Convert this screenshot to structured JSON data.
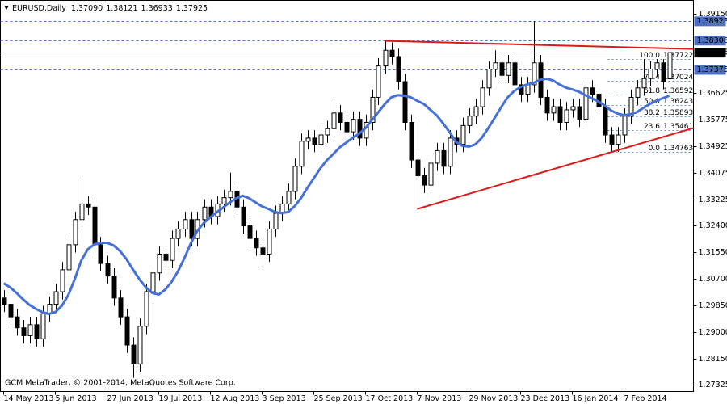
{
  "chart_data": {
    "type": "candlestick",
    "symbol": "EURUSD,Daily",
    "quote": [
      "1.37090",
      "1.38121",
      "1.36933",
      "1.37925"
    ],
    "footer": "GCM MetaTrader, © 2001-2014, MetaQuotes Software Corp.",
    "grid": false,
    "colors": {
      "up": "#ffffff",
      "down": "#000000",
      "wick": "#000000",
      "ma": "#4470d8",
      "trend": "#e01818",
      "level": "#4a6fc4",
      "last": "#a0a0a0",
      "fib": "#3a66c8"
    },
    "xlim": [
      -0.5,
      106.75
    ],
    "xticks": [
      {
        "value": 0,
        "label": "14 May 2013"
      },
      {
        "value": 8,
        "label": "5 Jun 2013"
      },
      {
        "value": 16,
        "label": "27 Jun 2013"
      },
      {
        "value": 24,
        "label": "19 Jul 2013"
      },
      {
        "value": 32,
        "label": "12 Aug 2013"
      },
      {
        "value": 40,
        "label": "3 Sep 2013"
      },
      {
        "value": 48,
        "label": "25 Sep 2013"
      },
      {
        "value": 56,
        "label": "17 Oct 2013"
      },
      {
        "value": 64,
        "label": "7 Nov 2013"
      },
      {
        "value": 72,
        "label": "29 Nov 2013"
      },
      {
        "value": 80,
        "label": "23 Dec 2013"
      },
      {
        "value": 88,
        "label": "16 Jan 2014"
      },
      {
        "value": 96,
        "label": "7 Feb 2014"
      }
    ],
    "ylim": [
      1.2712,
      1.3959
    ],
    "yticks": [
      {
        "value": 1.3915,
        "label": "1.39150"
      },
      1.36625,
      1.35775,
      1.34925,
      1.34075,
      1.33225,
      {
        "value": 1.324,
        "label": "1.32400"
      },
      {
        "value": 1.3155,
        "label": "1.31550"
      },
      {
        "value": 1.307,
        "label": "1.30700"
      },
      {
        "value": 1.2985,
        "label": "1.29850"
      },
      {
        "value": 1.29,
        "label": "1.29000"
      },
      {
        "value": 1.2815,
        "label": "1.28150"
      },
      1.27325
    ],
    "levels": [
      1.38923,
      1.38308,
      1.37375
    ],
    "last_price": 1.37925,
    "trendlines": [
      {
        "x": [
          59,
          106.75
        ],
        "y": [
          1.383,
          1.3804
        ]
      },
      {
        "x": [
          64,
          106.75
        ],
        "y": [
          1.3294,
          1.3552
        ]
      }
    ],
    "fib": [
      {
        "ratio": {
          "value": 100,
          "label": "100.0"
        },
        "price": 1.37722
      },
      {
        "ratio": 76.4,
        "price": 1.37024
      },
      {
        "ratio": 61.8,
        "price": 1.36592
      },
      {
        "ratio": {
          "value": 50,
          "label": "50.0"
        },
        "price": 1.36243
      },
      {
        "ratio": 38.2,
        "price": 1.35893
      },
      {
        "ratio": 23.6,
        "price": 1.35461
      },
      {
        "ratio": {
          "value": 0,
          "label": "0.0"
        },
        "price": 1.34763
      }
    ],
    "ohlc": [
      [
        1.301,
        1.3035,
        1.2965,
        1.299
      ],
      [
        1.299,
        1.3015,
        1.2925,
        1.295
      ],
      [
        1.295,
        1.2975,
        1.289,
        1.2915
      ],
      [
        1.2915,
        1.294,
        1.2865,
        1.289
      ],
      [
        1.289,
        1.295,
        1.2865,
        1.2925
      ],
      [
        1.2925,
        1.295,
        1.2855,
        1.288
      ],
      [
        1.288,
        1.2985,
        1.2855,
        1.296
      ],
      [
        1.296,
        1.3015,
        1.2935,
        1.299
      ],
      [
        1.299,
        1.3055,
        1.2965,
        1.303
      ],
      [
        1.303,
        1.3125,
        1.3005,
        1.31
      ],
      [
        1.31,
        1.3205,
        1.3075,
        1.318
      ],
      [
        1.318,
        1.3285,
        1.3155,
        1.326
      ],
      [
        1.326,
        1.34,
        1.3235,
        1.331
      ],
      [
        1.331,
        1.3335,
        1.3275,
        1.33
      ],
      [
        1.33,
        1.3325,
        1.3155,
        1.318
      ],
      [
        1.318,
        1.3205,
        1.3095,
        1.312
      ],
      [
        1.312,
        1.3145,
        1.3055,
        1.308
      ],
      [
        1.308,
        1.3105,
        1.2985,
        1.301
      ],
      [
        1.301,
        1.3035,
        1.2925,
        1.295
      ],
      [
        1.295,
        1.2975,
        1.2835,
        1.286
      ],
      [
        1.286,
        1.2885,
        1.2755,
        1.28
      ],
      [
        1.28,
        1.2945,
        1.2775,
        1.292
      ],
      [
        1.292,
        1.3055,
        1.2895,
        1.303
      ],
      [
        1.303,
        1.3115,
        1.3005,
        1.309
      ],
      [
        1.309,
        1.3175,
        1.3065,
        1.315
      ],
      [
        1.315,
        1.3175,
        1.3105,
        1.313
      ],
      [
        1.313,
        1.3225,
        1.3105,
        1.32
      ],
      [
        1.32,
        1.3255,
        1.3175,
        1.323
      ],
      [
        1.323,
        1.3285,
        1.3205,
        1.326
      ],
      [
        1.326,
        1.3285,
        1.3175,
        1.32
      ],
      [
        1.32,
        1.3285,
        1.3175,
        1.326
      ],
      [
        1.326,
        1.3325,
        1.3235,
        1.33
      ],
      [
        1.33,
        1.3325,
        1.3245,
        1.327
      ],
      [
        1.327,
        1.3335,
        1.3245,
        1.331
      ],
      [
        1.331,
        1.3355,
        1.3285,
        1.333
      ],
      [
        1.333,
        1.341,
        1.3305,
        1.335
      ],
      [
        1.335,
        1.3375,
        1.3275,
        1.33
      ],
      [
        1.33,
        1.3325,
        1.3215,
        1.324
      ],
      [
        1.324,
        1.3265,
        1.3175,
        1.32
      ],
      [
        1.32,
        1.3225,
        1.3145,
        1.317
      ],
      [
        1.317,
        1.3195,
        1.3105,
        1.315
      ],
      [
        1.315,
        1.3255,
        1.3125,
        1.323
      ],
      [
        1.323,
        1.3305,
        1.3205,
        1.328
      ],
      [
        1.328,
        1.3335,
        1.3255,
        1.331
      ],
      [
        1.331,
        1.3375,
        1.3285,
        1.335
      ],
      [
        1.335,
        1.3455,
        1.3325,
        1.343
      ],
      [
        1.343,
        1.3535,
        1.3405,
        1.351
      ],
      [
        1.351,
        1.3545,
        1.3485,
        1.352
      ],
      [
        1.352,
        1.3545,
        1.3475,
        1.35
      ],
      [
        1.35,
        1.3555,
        1.3475,
        1.353
      ],
      [
        1.353,
        1.3575,
        1.3505,
        1.355
      ],
      [
        1.355,
        1.3645,
        1.3525,
        1.36
      ],
      [
        1.36,
        1.3625,
        1.3545,
        1.357
      ],
      [
        1.357,
        1.3595,
        1.3515,
        1.354
      ],
      [
        1.354,
        1.3605,
        1.3515,
        1.358
      ],
      [
        1.358,
        1.3605,
        1.3495,
        1.352
      ],
      [
        1.352,
        1.3595,
        1.3495,
        1.357
      ],
      [
        1.357,
        1.3675,
        1.3545,
        1.365
      ],
      [
        1.365,
        1.3775,
        1.3625,
        1.375
      ],
      [
        1.375,
        1.383,
        1.3725,
        1.38
      ],
      [
        1.38,
        1.3825,
        1.3755,
        1.378
      ],
      [
        1.378,
        1.3805,
        1.3675,
        1.37
      ],
      [
        1.37,
        1.3725,
        1.3545,
        1.357
      ],
      [
        1.357,
        1.3595,
        1.3425,
        1.345
      ],
      [
        1.345,
        1.3475,
        1.3295,
        1.34
      ],
      [
        1.34,
        1.3425,
        1.3345,
        1.337
      ],
      [
        1.337,
        1.3465,
        1.3345,
        1.344
      ],
      [
        1.344,
        1.3505,
        1.3415,
        1.348
      ],
      [
        1.348,
        1.3505,
        1.3405,
        1.343
      ],
      [
        1.343,
        1.3545,
        1.3405,
        1.352
      ],
      [
        1.352,
        1.3545,
        1.3475,
        1.35
      ],
      [
        1.35,
        1.3585,
        1.3475,
        1.356
      ],
      [
        1.356,
        1.3615,
        1.3535,
        1.359
      ],
      [
        1.359,
        1.3645,
        1.3565,
        1.362
      ],
      [
        1.362,
        1.3705,
        1.3595,
        1.368
      ],
      [
        1.368,
        1.3765,
        1.3655,
        1.374
      ],
      [
        1.374,
        1.38,
        1.3715,
        1.376
      ],
      [
        1.376,
        1.3785,
        1.3695,
        1.372
      ],
      [
        1.372,
        1.3785,
        1.3695,
        1.376
      ],
      [
        1.376,
        1.3785,
        1.3665,
        1.369
      ],
      [
        1.369,
        1.3715,
        1.3635,
        1.366
      ],
      [
        1.366,
        1.3715,
        1.3635,
        1.369
      ],
      [
        1.369,
        1.3893,
        1.3665,
        1.376
      ],
      [
        1.376,
        1.3785,
        1.3625,
        1.365
      ],
      [
        1.365,
        1.3675,
        1.3575,
        1.36
      ],
      [
        1.36,
        1.3645,
        1.3575,
        1.362
      ],
      [
        1.362,
        1.3645,
        1.3545,
        1.357
      ],
      [
        1.357,
        1.3635,
        1.3545,
        1.361
      ],
      [
        1.361,
        1.3645,
        1.3585,
        1.362
      ],
      [
        1.362,
        1.3645,
        1.3555,
        1.358
      ],
      [
        1.358,
        1.3705,
        1.3555,
        1.368
      ],
      [
        1.368,
        1.3705,
        1.3635,
        1.366
      ],
      [
        1.366,
        1.3685,
        1.3595,
        1.362
      ],
      [
        1.362,
        1.3645,
        1.3505,
        1.353
      ],
      [
        1.353,
        1.3555,
        1.3476,
        1.35
      ],
      [
        1.35,
        1.3555,
        1.3476,
        1.353
      ],
      [
        1.353,
        1.3615,
        1.3505,
        1.359
      ],
      [
        1.359,
        1.3675,
        1.3565,
        1.365
      ],
      [
        1.365,
        1.3705,
        1.3625,
        1.368
      ],
      [
        1.368,
        1.3772,
        1.3655,
        1.371
      ],
      [
        1.371,
        1.3765,
        1.3685,
        1.374
      ],
      [
        1.374,
        1.3772,
        1.3715,
        1.376
      ],
      [
        1.376,
        1.3772,
        1.3675,
        1.37
      ],
      [
        1.3709,
        1.38121,
        1.36933,
        1.37925
      ]
    ],
    "ma": [
      1.3057,
      1.3044,
      1.3026,
      1.3006,
      1.2988,
      1.2975,
      1.2965,
      1.2959,
      1.2965,
      1.2985,
      1.3019,
      1.307,
      1.3129,
      1.3165,
      1.3181,
      1.3186,
      1.3186,
      1.3178,
      1.316,
      1.3134,
      1.3101,
      1.307,
      1.3044,
      1.3026,
      1.3021,
      1.3037,
      1.3062,
      1.3096,
      1.3139,
      1.3186,
      1.3225,
      1.325,
      1.3268,
      1.3284,
      1.3299,
      1.3315,
      1.3328,
      1.3336,
      1.3328,
      1.3315,
      1.3302,
      1.3294,
      1.3284,
      1.3281,
      1.3284,
      1.3302,
      1.3328,
      1.3361,
      1.3392,
      1.3423,
      1.3449,
      1.3469,
      1.349,
      1.3505,
      1.3521,
      1.3534,
      1.3552,
      1.3578,
      1.3603,
      1.3629,
      1.365,
      1.3657,
      1.3655,
      1.365,
      1.3639,
      1.3629,
      1.3611,
      1.3593,
      1.3567,
      1.3539,
      1.3508,
      1.3495,
      1.3493,
      1.35,
      1.3521,
      1.3552,
      1.3585,
      1.3619,
      1.365,
      1.367,
      1.3683,
      1.3691,
      1.3696,
      1.3706,
      1.3709,
      1.3704,
      1.3691,
      1.3681,
      1.3675,
      1.3668,
      1.3657,
      1.3647,
      1.3637,
      1.3624,
      1.3608,
      1.3598,
      1.3593,
      1.3596,
      1.3603,
      1.3616,
      1.3629,
      1.3639,
      1.3647,
      1.3655
    ]
  }
}
